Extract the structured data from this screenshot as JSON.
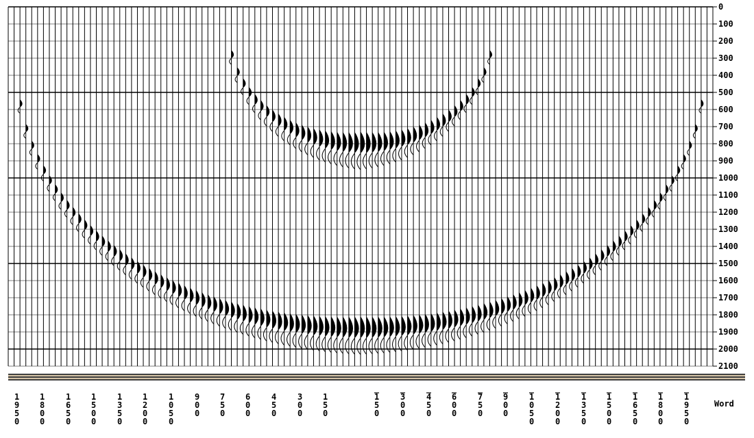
{
  "chart_data": {
    "type": "seismic-wiggle",
    "title": "",
    "x_axis": {
      "unit_label": "Word",
      "offsets": [
        -1950,
        -1800,
        -1650,
        -1500,
        -1350,
        -1200,
        -1050,
        -900,
        -750,
        -600,
        -450,
        -300,
        -150,
        150,
        300,
        450,
        600,
        750,
        900,
        1050,
        1200,
        1350,
        1500,
        1650,
        1800,
        1950
      ],
      "label_left_side": [
        "1950",
        "1800",
        "1650",
        "1500",
        "1350",
        "1200",
        "1050",
        "900",
        "750",
        "600",
        "450",
        "300",
        "150"
      ],
      "label_right_side": [
        "150",
        "300",
        "450",
        "600",
        "750",
        "900",
        "1050",
        "1200",
        "1350",
        "1500",
        "1650",
        "1800",
        "1950"
      ]
    },
    "y_axis": {
      "ticks": [
        0,
        100,
        200,
        300,
        400,
        500,
        600,
        700,
        800,
        900,
        1000,
        1100,
        1200,
        1300,
        1400,
        1500,
        1600,
        1700,
        1800,
        1900,
        2000,
        2100
      ],
      "tick_labels": [
        "0",
        "100",
        "200",
        "300",
        "400",
        "500",
        "600",
        "700",
        "800",
        "900",
        "1000",
        "1100",
        "1200",
        "1300",
        "1400",
        "1500",
        "1600",
        "1700",
        "1800",
        "1900",
        "2000",
        "2100"
      ],
      "range": [
        0,
        2100
      ],
      "major_lines_every": 500
    },
    "events": [
      {
        "name": "",
        "apex_time": 840,
        "apex_offset": 0,
        "x_range": [
          -750,
          750
        ],
        "top_time": 150
      },
      {
        "name": "",
        "apex_time": 1920,
        "apex_offset": 0,
        "x_range": [
          -1950,
          1950
        ],
        "top_time": 380
      }
    ],
    "x_range": [
      -2000,
      2000
    ],
    "traces_per_panel": 120,
    "grid": true
  }
}
